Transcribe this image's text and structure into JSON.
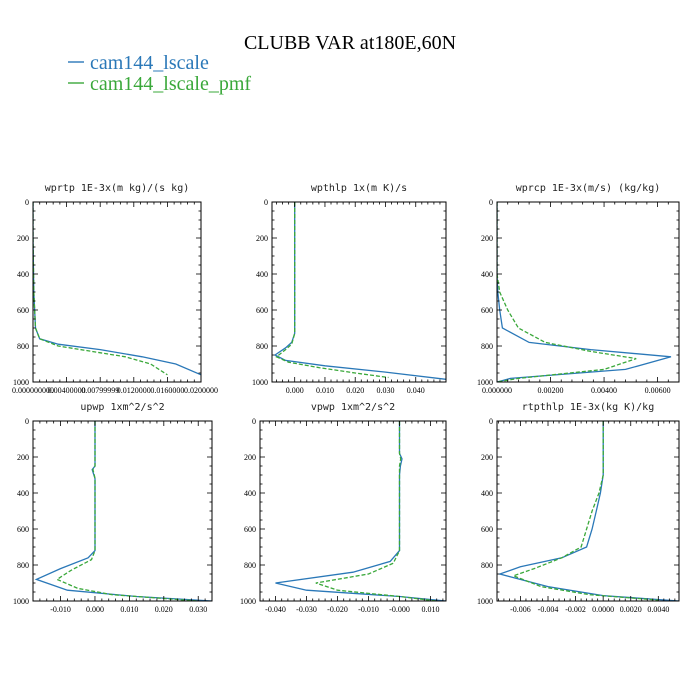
{
  "chart_data": {
    "type": "line",
    "title": "CLUBB VAR at180E,60N",
    "series": [
      {
        "name": "cam144_lscale",
        "color": "#2a78b8",
        "dash": "solid"
      },
      {
        "name": "cam144_lscale_pmf",
        "color": "#3aa83a",
        "dash": "dashed"
      }
    ],
    "ylim": [
      1000,
      0
    ],
    "yticks": [
      0,
      200,
      400,
      600,
      800,
      1000
    ],
    "panels": [
      {
        "title": "wprtp  1E-3x(m kg)/(s kg)",
        "xlim": [
          0,
          0.02
        ],
        "xticks": [
          0,
          0.004,
          0.008,
          0.012,
          0.016,
          0.02
        ],
        "xticklabels": [
          "0.000000000",
          "0.00400000",
          "0.00799999",
          "0.0120000",
          "0.0160000",
          "0.0200000"
        ],
        "profiles": [
          [
            [
              0,
              0
            ],
            [
              0,
              200
            ],
            [
              0.0001,
              500
            ],
            [
              0.0003,
              700
            ],
            [
              0.0008,
              760
            ],
            [
              0.003,
              790
            ],
            [
              0.008,
              820
            ],
            [
              0.013,
              860
            ],
            [
              0.017,
              900
            ],
            [
              0.02,
              960
            ]
          ],
          [
            [
              0,
              0
            ],
            [
              0,
              200
            ],
            [
              0.0001,
              500
            ],
            [
              0.0003,
              700
            ],
            [
              0.0008,
              760
            ],
            [
              0.003,
              800
            ],
            [
              0.007,
              830
            ],
            [
              0.011,
              860
            ],
            [
              0.014,
              900
            ],
            [
              0.016,
              960
            ]
          ]
        ]
      },
      {
        "title": "wpthlp  1x(m K)/s",
        "xlim": [
          -0.0075,
          0.05
        ],
        "xticks": [
          0,
          0.01,
          0.02,
          0.03,
          0.04
        ],
        "xticklabels": [
          "0.000",
          "0.010",
          "0.020",
          "0.030",
          "0.040"
        ],
        "profiles": [
          [
            [
              0,
              0
            ],
            [
              0,
              650
            ],
            [
              0,
              730
            ],
            [
              -0.001,
              780
            ],
            [
              -0.003,
              810
            ],
            [
              -0.0065,
              850
            ],
            [
              -0.003,
              880
            ],
            [
              0.01,
              910
            ],
            [
              0.03,
              945
            ],
            [
              0.05,
              985
            ]
          ],
          [
            [
              0,
              0
            ],
            [
              0,
              650
            ],
            [
              0,
              730
            ],
            [
              -0.001,
              790
            ],
            [
              -0.003,
              820
            ],
            [
              -0.006,
              860
            ],
            [
              -0.002,
              890
            ],
            [
              0.008,
              920
            ],
            [
              0.02,
              950
            ],
            [
              0.031,
              975
            ]
          ]
        ]
      },
      {
        "title": "wprcp  1E-3x(m/s) (kg/kg)",
        "xlim": [
          0,
          0.0068
        ],
        "xticks": [
          0,
          0.002,
          0.004,
          0.006
        ],
        "xticklabels": [
          "0.000000",
          "0.00200",
          "0.00400",
          "0.00600"
        ],
        "profiles": [
          [
            [
              0,
              0
            ],
            [
              0,
              400
            ],
            [
              3e-05,
              500
            ],
            [
              0.0001,
              600
            ],
            [
              0.0002,
              700
            ],
            [
              0.0012,
              780
            ],
            [
              0.0035,
              820
            ],
            [
              0.0065,
              860
            ],
            [
              0.0048,
              930
            ],
            [
              0.0005,
              980
            ],
            [
              0,
              1000
            ]
          ],
          [
            [
              0,
              0
            ],
            [
              0,
              400
            ],
            [
              0.0001,
              500
            ],
            [
              0.0004,
              600
            ],
            [
              0.0008,
              700
            ],
            [
              0.0018,
              780
            ],
            [
              0.0035,
              830
            ],
            [
              0.0052,
              870
            ],
            [
              0.004,
              930
            ],
            [
              0.0008,
              980
            ],
            [
              0,
              1000
            ]
          ]
        ]
      },
      {
        "title": "upwp  1xm^2/s^2",
        "xlim": [
          -0.018,
          0.034
        ],
        "xticks": [
          -0.01,
          0,
          0.01,
          0.02,
          0.03
        ],
        "xticklabels": [
          "-0.010",
          "0.000",
          "0.010",
          "0.020",
          "0.030"
        ],
        "profiles": [
          [
            [
              0,
              0
            ],
            [
              0,
              250
            ],
            [
              -0.0008,
              270
            ],
            [
              -0.0003,
              300
            ],
            [
              0,
              320
            ],
            [
              0,
              720
            ],
            [
              -0.002,
              760
            ],
            [
              -0.01,
              820
            ],
            [
              -0.017,
              880
            ],
            [
              -0.008,
              940
            ],
            [
              0.012,
              975
            ],
            [
              0.034,
              1000
            ]
          ],
          [
            [
              0,
              0
            ],
            [
              0,
              250
            ],
            [
              -0.0006,
              270
            ],
            [
              -0.0002,
              300
            ],
            [
              0,
              320
            ],
            [
              0,
              720
            ],
            [
              -0.001,
              770
            ],
            [
              -0.007,
              830
            ],
            [
              -0.011,
              880
            ],
            [
              -0.005,
              930
            ],
            [
              0.005,
              965
            ],
            [
              0.03,
              1000
            ]
          ]
        ]
      },
      {
        "title": "vpwp  1xm^2/s^2",
        "xlim": [
          -0.045,
          0.015
        ],
        "xticks": [
          -0.04,
          -0.03,
          -0.02,
          -0.01,
          0,
          0.01
        ],
        "xticklabels": [
          "-0.040",
          "-0.030",
          "-0.020",
          "-0.010",
          "-0.000",
          "0.010"
        ],
        "profiles": [
          [
            [
              0,
              0
            ],
            [
              0,
              180
            ],
            [
              0.0008,
              210
            ],
            [
              0.0003,
              250
            ],
            [
              0,
              300
            ],
            [
              0,
              720
            ],
            [
              -0.003,
              780
            ],
            [
              -0.015,
              840
            ],
            [
              -0.04,
              900
            ],
            [
              -0.03,
              940
            ],
            [
              0,
              975
            ],
            [
              0.015,
              1000
            ]
          ],
          [
            [
              0,
              0
            ],
            [
              0,
              180
            ],
            [
              0.0004,
              210
            ],
            [
              0,
              250
            ],
            [
              0,
              300
            ],
            [
              0,
              720
            ],
            [
              -0.002,
              790
            ],
            [
              -0.01,
              850
            ],
            [
              -0.027,
              900
            ],
            [
              -0.02,
              940
            ],
            [
              0,
              975
            ],
            [
              0.012,
              1000
            ]
          ]
        ]
      },
      {
        "title": "rtpthlp  1E-3x(kg K)/kg",
        "xlim": [
          -0.0077,
          0.0055
        ],
        "xticks": [
          -0.006,
          -0.004,
          -0.002,
          0,
          0.002,
          0.004
        ],
        "xticklabels": [
          "-0.006",
          "-0.004",
          "-0.002",
          "0.0000",
          "0.0020",
          "0.0040"
        ],
        "profiles": [
          [
            [
              0,
              0
            ],
            [
              0,
              300
            ],
            [
              -0.0002,
              400
            ],
            [
              -0.0005,
              500
            ],
            [
              -0.0008,
              600
            ],
            [
              -0.0012,
              700
            ],
            [
              -0.003,
              760
            ],
            [
              -0.006,
              810
            ],
            [
              -0.0075,
              850
            ],
            [
              -0.004,
              920
            ],
            [
              0,
              970
            ],
            [
              0.0055,
              1000
            ]
          ],
          [
            [
              0,
              0
            ],
            [
              0,
              300
            ],
            [
              -0.0003,
              400
            ],
            [
              -0.0008,
              500
            ],
            [
              -0.0012,
              600
            ],
            [
              -0.0016,
              700
            ],
            [
              -0.003,
              760
            ],
            [
              -0.005,
              820
            ],
            [
              -0.0065,
              860
            ],
            [
              -0.0045,
              920
            ],
            [
              -0.001,
              965
            ],
            [
              0.004,
              995
            ]
          ]
        ]
      }
    ]
  }
}
